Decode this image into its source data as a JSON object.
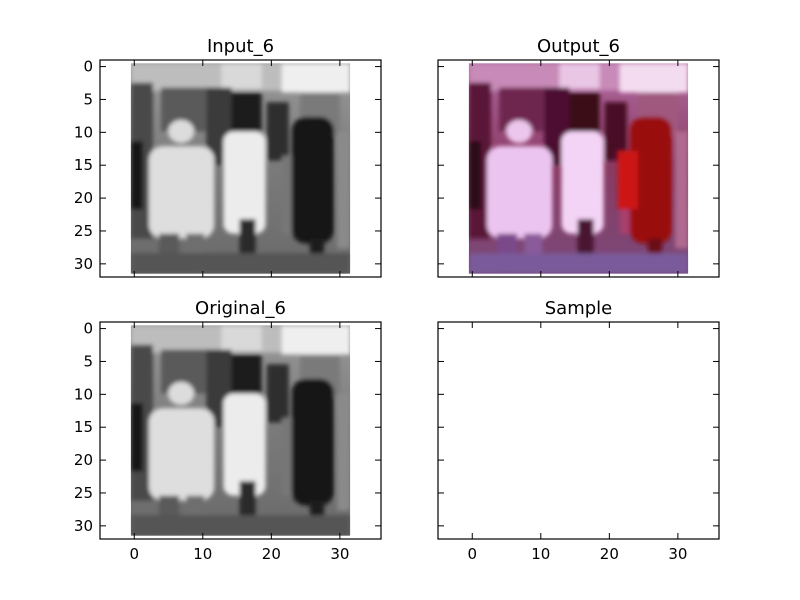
{
  "chart_data": [
    {
      "type": "image",
      "title": "Input_6",
      "image": "grayscale-pedestrians",
      "extent": [
        0,
        32,
        0,
        32
      ],
      "xlim": [
        -5,
        36
      ],
      "ylim": [
        32,
        -1
      ],
      "xticks": [
        0,
        10,
        20,
        30
      ],
      "yticks": [
        0,
        5,
        10,
        15,
        20,
        25,
        30
      ],
      "show_xtick_labels": false,
      "show_ytick_labels": true
    },
    {
      "type": "image",
      "title": "Output_6",
      "image": "magenta-tinted-pedestrians",
      "extent": [
        0,
        32,
        0,
        32
      ],
      "xlim": [
        -5,
        36
      ],
      "ylim": [
        32,
        -1
      ],
      "xticks": [
        0,
        10,
        20,
        30
      ],
      "yticks": [
        0,
        5,
        10,
        15,
        20,
        25,
        30
      ],
      "show_xtick_labels": false,
      "show_ytick_labels": false
    },
    {
      "type": "image",
      "title": "Original_6",
      "image": "grayscale-pedestrians",
      "extent": [
        0,
        32,
        0,
        32
      ],
      "xlim": [
        -5,
        36
      ],
      "ylim": [
        32,
        -1
      ],
      "xticks": [
        0,
        10,
        20,
        30
      ],
      "yticks": [
        0,
        5,
        10,
        15,
        20,
        25,
        30
      ],
      "show_xtick_labels": true,
      "show_ytick_labels": true
    },
    {
      "type": "image",
      "title": "Sample",
      "image": "",
      "extent": [],
      "xlim": [
        -5,
        36
      ],
      "ylim": [
        32,
        -1
      ],
      "xticks": [
        0,
        10,
        20,
        30
      ],
      "yticks": [
        0,
        5,
        10,
        15,
        20,
        25,
        30
      ],
      "show_xtick_labels": true,
      "show_ytick_labels": false
    }
  ]
}
